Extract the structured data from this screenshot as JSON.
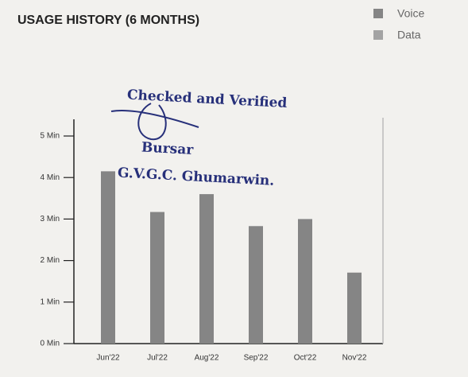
{
  "chart_data": {
    "type": "bar",
    "title": "USAGE HISTORY (6 MONTHS)",
    "categories": [
      "Jun'22",
      "Jul'22",
      "Aug'22",
      "Sep'22",
      "Oct'22",
      "Nov'22"
    ],
    "series": [
      {
        "name": "Voice",
        "color": "#858585",
        "values": [
          4.15,
          3.17,
          3.6,
          2.83,
          3.0,
          1.71
        ]
      },
      {
        "name": "Data",
        "color": "#a3a3a3",
        "values": [
          0,
          0,
          0,
          0,
          0,
          0
        ]
      }
    ],
    "ylim": [
      0,
      5
    ],
    "yticks": [
      {
        "value": 0,
        "label": "0 Min"
      },
      {
        "value": 1,
        "label": "1 Min"
      },
      {
        "value": 2,
        "label": "2 Min"
      },
      {
        "value": 3,
        "label": "3 Min"
      },
      {
        "value": 4,
        "label": "4 Min"
      },
      {
        "value": 5,
        "label": "5 Min"
      }
    ],
    "annotations": [
      "Checked and Verified",
      "Bursar",
      "G.V.G.C. Ghumarwin."
    ],
    "legend": "top-right"
  }
}
